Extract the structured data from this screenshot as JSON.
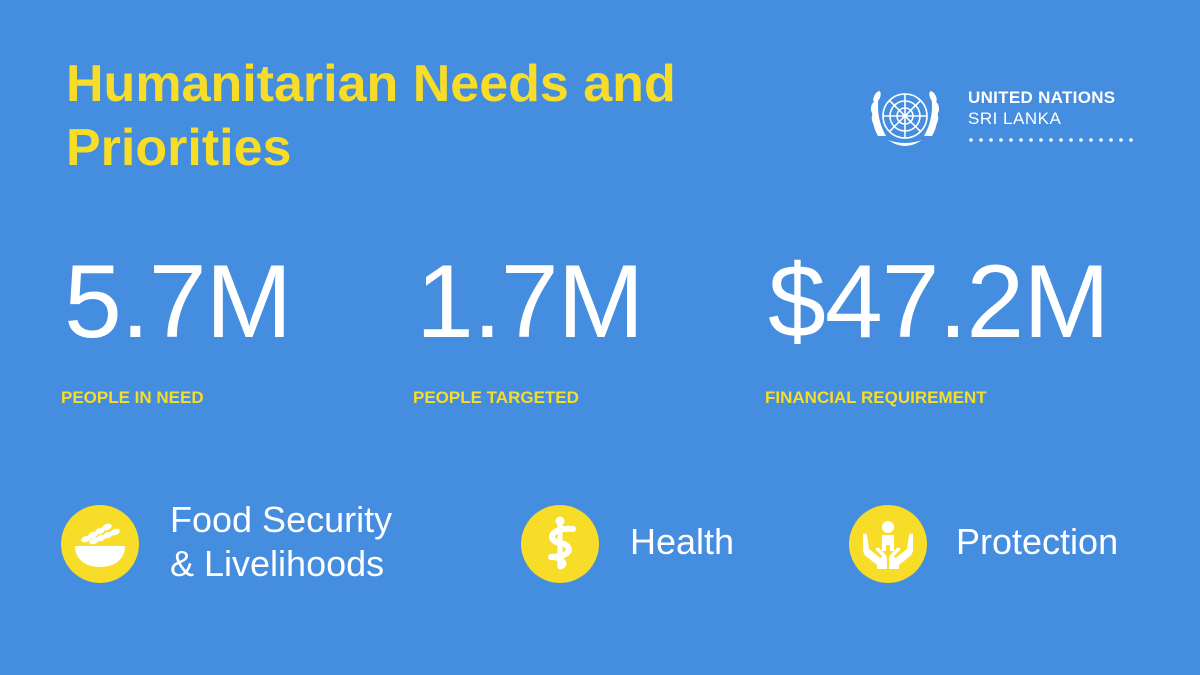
{
  "title": "Humanitarian Needs and Priorities",
  "logo": {
    "name": "UNITED NATIONS",
    "subtitle": "SRI LANKA",
    "emblem_icon": "un-emblem-icon"
  },
  "stats": [
    {
      "value": "5.7M",
      "label": "PEOPLE IN NEED"
    },
    {
      "value": "1.7M",
      "label": "PEOPLE TARGETED"
    },
    {
      "value": "$47.2M",
      "label": "FINANCIAL REQUIREMENT"
    }
  ],
  "sectors": [
    {
      "line1": "Food Security",
      "line2": "& Livelihoods",
      "icon": "food-bowl-icon"
    },
    {
      "line1": "Health",
      "line2": "",
      "icon": "health-icon"
    },
    {
      "line1": "Protection",
      "line2": "",
      "icon": "protection-hands-icon"
    }
  ],
  "colors": {
    "background": "#448ddf",
    "accent": "#f7dd28",
    "text": "#ffffff"
  }
}
